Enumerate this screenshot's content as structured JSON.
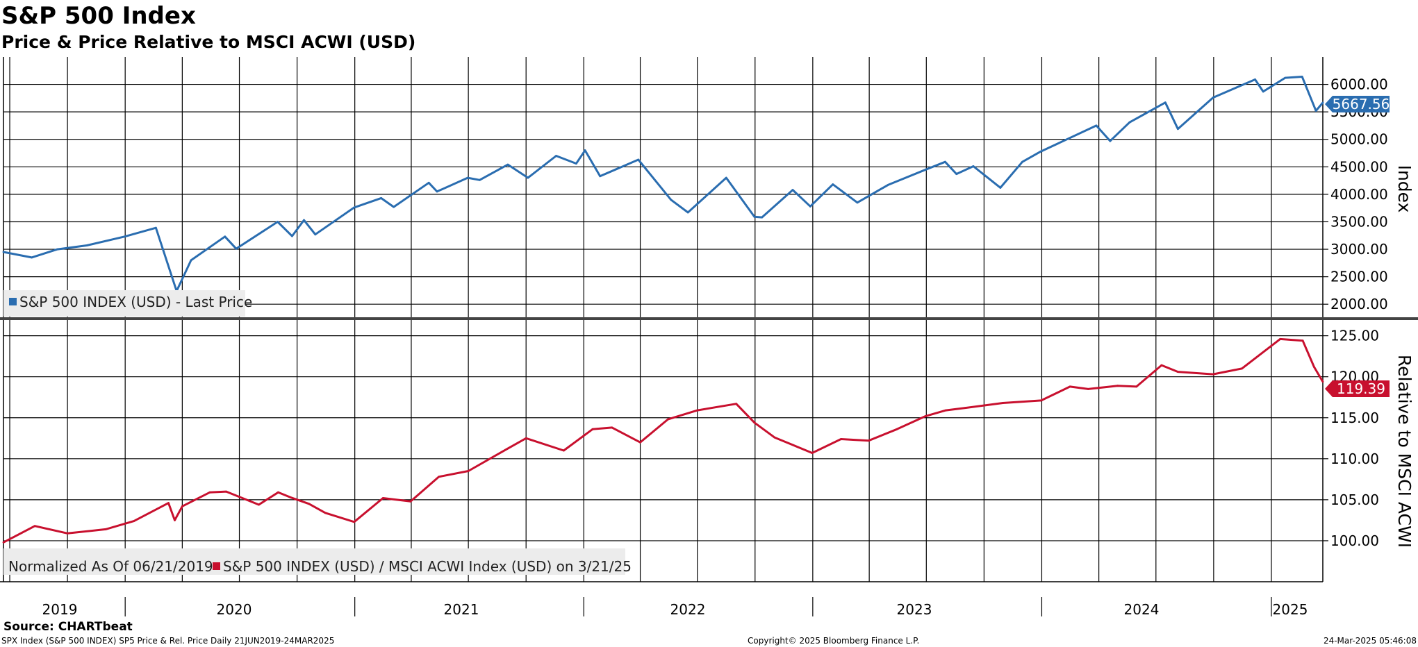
{
  "header": {
    "title": "S&P 500 Index",
    "subtitle": "Price & Price Relative to MSCI ACWI (USD)"
  },
  "chart_data": [
    {
      "type": "line",
      "ylabel": "Index",
      "ylim": [
        1750,
        6500
      ],
      "yticks": [
        "6000.00",
        "5500.00",
        "5000.00",
        "4500.00",
        "4000.00",
        "3500.00",
        "3000.00",
        "2500.00",
        "2000.00"
      ],
      "legend": [
        "S&P 500 INDEX (USD) - Last Price"
      ],
      "last_value_label": "5667.56",
      "series": [
        {
          "name": "S&P 500 INDEX (USD) - Last Price",
          "color": "#2a6db0",
          "x": [
            "2019-06-21",
            "2019-08-05",
            "2019-09-15",
            "2019-11-01",
            "2019-12-31",
            "2020-02-19",
            "2020-03-23",
            "2020-04-15",
            "2020-06-08",
            "2020-06-26",
            "2020-08-31",
            "2020-09-23",
            "2020-10-12",
            "2020-10-30",
            "2020-12-31",
            "2021-02-12",
            "2021-03-04",
            "2021-04-29",
            "2021-05-12",
            "2021-06-30",
            "2021-07-19",
            "2021-09-02",
            "2021-10-04",
            "2021-11-18",
            "2021-12-20",
            "2022-01-03",
            "2022-01-27",
            "2022-03-29",
            "2022-05-20",
            "2022-06-16",
            "2022-08-16",
            "2022-09-30",
            "2022-10-12",
            "2022-11-30",
            "2022-12-28",
            "2023-02-02",
            "2023-03-13",
            "2023-05-01",
            "2023-06-30",
            "2023-07-31",
            "2023-08-18",
            "2023-09-14",
            "2023-10-27",
            "2023-12-01",
            "2023-12-29",
            "2024-03-28",
            "2024-04-19",
            "2024-05-20",
            "2024-07-16",
            "2024-08-05",
            "2024-09-30",
            "2024-12-06",
            "2024-12-19",
            "2025-01-23",
            "2025-02-19",
            "2025-03-13",
            "2025-03-24"
          ],
          "y": [
            2950,
            2850,
            3000,
            3070,
            3230,
            3390,
            2240,
            2800,
            3230,
            3010,
            3500,
            3240,
            3530,
            3270,
            3760,
            3930,
            3770,
            4210,
            4050,
            4300,
            4260,
            4540,
            4300,
            4700,
            4560,
            4800,
            4330,
            4630,
            3900,
            3670,
            4300,
            3590,
            3580,
            4080,
            3780,
            4180,
            3850,
            4170,
            4450,
            4590,
            4370,
            4510,
            4120,
            4590,
            4770,
            5250,
            4970,
            5310,
            5670,
            5190,
            5760,
            6090,
            5870,
            6120,
            6140,
            5520,
            5667.56
          ]
        }
      ]
    },
    {
      "type": "line",
      "ylabel": "Relative to MSCI ACWI",
      "ylim": [
        95,
        127
      ],
      "yticks": [
        "125.00",
        "120.00",
        "115.00",
        "110.00",
        "105.00",
        "100.00"
      ],
      "legend": [
        "Normalized As Of 06/21/2019",
        "S&P 500 INDEX (USD) / MSCI ACWI Index (USD) on 3/21/25"
      ],
      "last_value_label": "119.39",
      "series": [
        {
          "name": "S&P 500 INDEX (USD) / MSCI ACWI Index (USD) on 3/21/25",
          "color": "#c8102e",
          "x": [
            "2019-06-21",
            "2019-08-10",
            "2019-10-01",
            "2019-12-01",
            "2020-01-15",
            "2020-03-10",
            "2020-03-20",
            "2020-04-01",
            "2020-05-15",
            "2020-06-10",
            "2020-08-01",
            "2020-09-01",
            "2020-09-20",
            "2020-10-20",
            "2020-11-15",
            "2020-12-31",
            "2021-02-15",
            "2021-03-31",
            "2021-05-15",
            "2021-07-01",
            "2021-09-01",
            "2021-10-01",
            "2021-11-30",
            "2022-01-15",
            "2022-02-15",
            "2022-04-01",
            "2022-05-15",
            "2022-07-01",
            "2022-09-01",
            "2022-09-30",
            "2022-11-01",
            "2022-12-31",
            "2023-02-15",
            "2023-03-31",
            "2023-05-15",
            "2023-06-30",
            "2023-08-01",
            "2023-09-01",
            "2023-10-31",
            "2023-12-31",
            "2024-02-15",
            "2024-03-15",
            "2024-05-01",
            "2024-05-31",
            "2024-07-10",
            "2024-08-05",
            "2024-09-30",
            "2024-11-15",
            "2025-01-15",
            "2025-02-20",
            "2025-03-10",
            "2025-03-24"
          ],
          "y": [
            99.8,
            101.8,
            100.9,
            101.4,
            102.4,
            104.6,
            102.5,
            104.2,
            105.9,
            106.0,
            104.4,
            105.9,
            105.3,
            104.5,
            103.4,
            102.3,
            105.2,
            104.8,
            107.8,
            108.5,
            111.2,
            112.5,
            111.0,
            113.6,
            113.8,
            112.0,
            114.8,
            115.9,
            116.7,
            114.4,
            112.6,
            110.7,
            112.4,
            112.2,
            113.6,
            115.2,
            115.9,
            116.2,
            116.8,
            117.1,
            118.8,
            118.5,
            118.9,
            118.8,
            121.4,
            120.6,
            120.3,
            121.0,
            124.6,
            124.4,
            121.2,
            119.39
          ]
        }
      ]
    }
  ],
  "xaxis": {
    "year_labels": [
      "2019",
      "2020",
      "2021",
      "2022",
      "2023",
      "2024",
      "2025"
    ]
  },
  "footer": {
    "source": "Source: CHARTbeat",
    "left": "SPX Index (S&P 500 INDEX) SP5 Price & Rel. Price  Daily 21JUN2019-24MAR2025",
    "center": "Copyright© 2025 Bloomberg Finance L.P.",
    "right": "24-Mar-2025 05:46:08"
  }
}
